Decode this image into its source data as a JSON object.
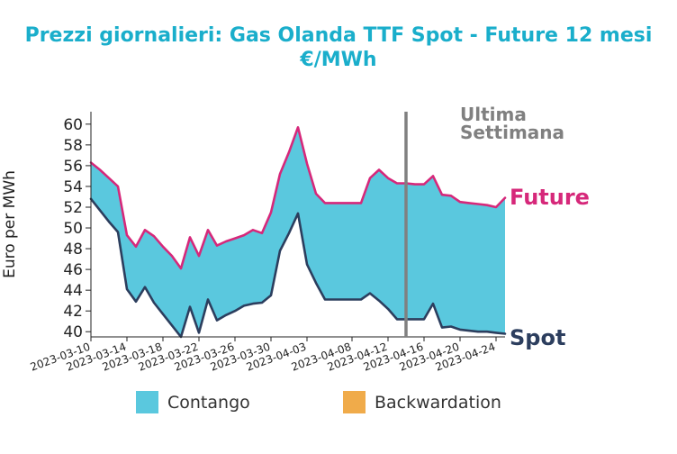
{
  "chart_data": {
    "type": "area",
    "title": "Prezzi giornalieri: Gas Olanda TTF Spot - Future 12 mesi",
    "subtitle": "€/MWh",
    "ylabel": "Euro per MWh",
    "xlabel": "",
    "ylim": [
      39.5,
      61.2
    ],
    "yticks": [
      40,
      42,
      44,
      46,
      48,
      50,
      52,
      54,
      56,
      58,
      60
    ],
    "xlim": [
      "2023-03-10",
      "2023-04-25"
    ],
    "xticks": [
      "2023-03-10",
      "2023-03-14",
      "2023-03-18",
      "2023-03-22",
      "2023-03-26",
      "2023-03-30",
      "2023-04-03",
      "2023-04-08",
      "2023-04-12",
      "2023-04-16",
      "2023-04-20",
      "2023-04-24"
    ],
    "grid": false,
    "series": [
      {
        "name": "Future",
        "color": "#d6287a",
        "x": [
          "2023-03-10",
          "2023-03-11",
          "2023-03-12",
          "2023-03-13",
          "2023-03-14",
          "2023-03-15",
          "2023-03-16",
          "2023-03-17",
          "2023-03-18",
          "2023-03-19",
          "2023-03-20",
          "2023-03-21",
          "2023-03-22",
          "2023-03-23",
          "2023-03-24",
          "2023-03-25",
          "2023-03-26",
          "2023-03-27",
          "2023-03-28",
          "2023-03-29",
          "2023-03-30",
          "2023-03-31",
          "2023-04-01",
          "2023-04-02",
          "2023-04-03",
          "2023-04-04",
          "2023-04-05",
          "2023-04-06",
          "2023-04-07",
          "2023-04-08",
          "2023-04-09",
          "2023-04-10",
          "2023-04-11",
          "2023-04-12",
          "2023-04-13",
          "2023-04-14",
          "2023-04-15",
          "2023-04-16",
          "2023-04-17",
          "2023-04-18",
          "2023-04-19",
          "2023-04-20",
          "2023-04-21",
          "2023-04-22",
          "2023-04-23",
          "2023-04-24",
          "2023-04-25"
        ],
        "values": [
          56.3,
          55.6,
          54.8,
          54.0,
          49.3,
          48.2,
          49.8,
          49.2,
          48.2,
          47.3,
          46.1,
          49.1,
          47.3,
          49.8,
          48.3,
          48.7,
          49.0,
          49.3,
          49.8,
          49.5,
          51.5,
          55.2,
          57.3,
          59.7,
          56.2,
          53.3,
          52.4,
          52.4,
          52.4,
          52.4,
          52.4,
          54.8,
          55.6,
          54.8,
          54.3,
          54.3,
          54.2,
          54.2,
          55.0,
          53.2,
          53.1,
          52.5,
          52.4,
          52.3,
          52.2,
          52.0,
          52.9
        ]
      },
      {
        "name": "Spot",
        "color": "#2c3e5e",
        "x": [
          "2023-03-10",
          "2023-03-11",
          "2023-03-12",
          "2023-03-13",
          "2023-03-14",
          "2023-03-15",
          "2023-03-16",
          "2023-03-17",
          "2023-03-18",
          "2023-03-19",
          "2023-03-20",
          "2023-03-21",
          "2023-03-22",
          "2023-03-23",
          "2023-03-24",
          "2023-03-25",
          "2023-03-26",
          "2023-03-27",
          "2023-03-28",
          "2023-03-29",
          "2023-03-30",
          "2023-03-31",
          "2023-04-01",
          "2023-04-02",
          "2023-04-03",
          "2023-04-04",
          "2023-04-05",
          "2023-04-06",
          "2023-04-07",
          "2023-04-08",
          "2023-04-09",
          "2023-04-10",
          "2023-04-11",
          "2023-04-12",
          "2023-04-13",
          "2023-04-14",
          "2023-04-15",
          "2023-04-16",
          "2023-04-17",
          "2023-04-18",
          "2023-04-19",
          "2023-04-20",
          "2023-04-21",
          "2023-04-22",
          "2023-04-23",
          "2023-04-24",
          "2023-04-25"
        ],
        "values": [
          52.8,
          51.7,
          50.6,
          49.6,
          44.1,
          42.9,
          44.3,
          42.8,
          41.7,
          40.6,
          39.5,
          42.4,
          39.9,
          43.1,
          41.1,
          41.6,
          42.0,
          42.5,
          42.7,
          42.8,
          43.5,
          47.8,
          49.5,
          51.4,
          46.5,
          44.7,
          43.1,
          43.1,
          43.1,
          43.1,
          43.1,
          43.7,
          43.0,
          42.2,
          41.2,
          41.2,
          41.2,
          41.2,
          42.7,
          40.4,
          40.5,
          40.2,
          40.1,
          40.0,
          40.0,
          39.9,
          39.8
        ]
      }
    ],
    "fill_between": [
      {
        "name": "Contango",
        "color": "#5ac8de",
        "when": "Future > Spot"
      },
      {
        "name": "Backwardation",
        "color": "#f0ab4a",
        "when": "Future < Spot"
      }
    ],
    "vline": {
      "x": "2023-04-14",
      "color": "#808080",
      "label_line1": "Ultima",
      "label_line2": "Settimana"
    },
    "end_labels": {
      "future": "Future",
      "spot": "Spot"
    },
    "legend": {
      "placement": "bottom-center",
      "items": [
        "Contango",
        "Backwardation"
      ]
    }
  }
}
